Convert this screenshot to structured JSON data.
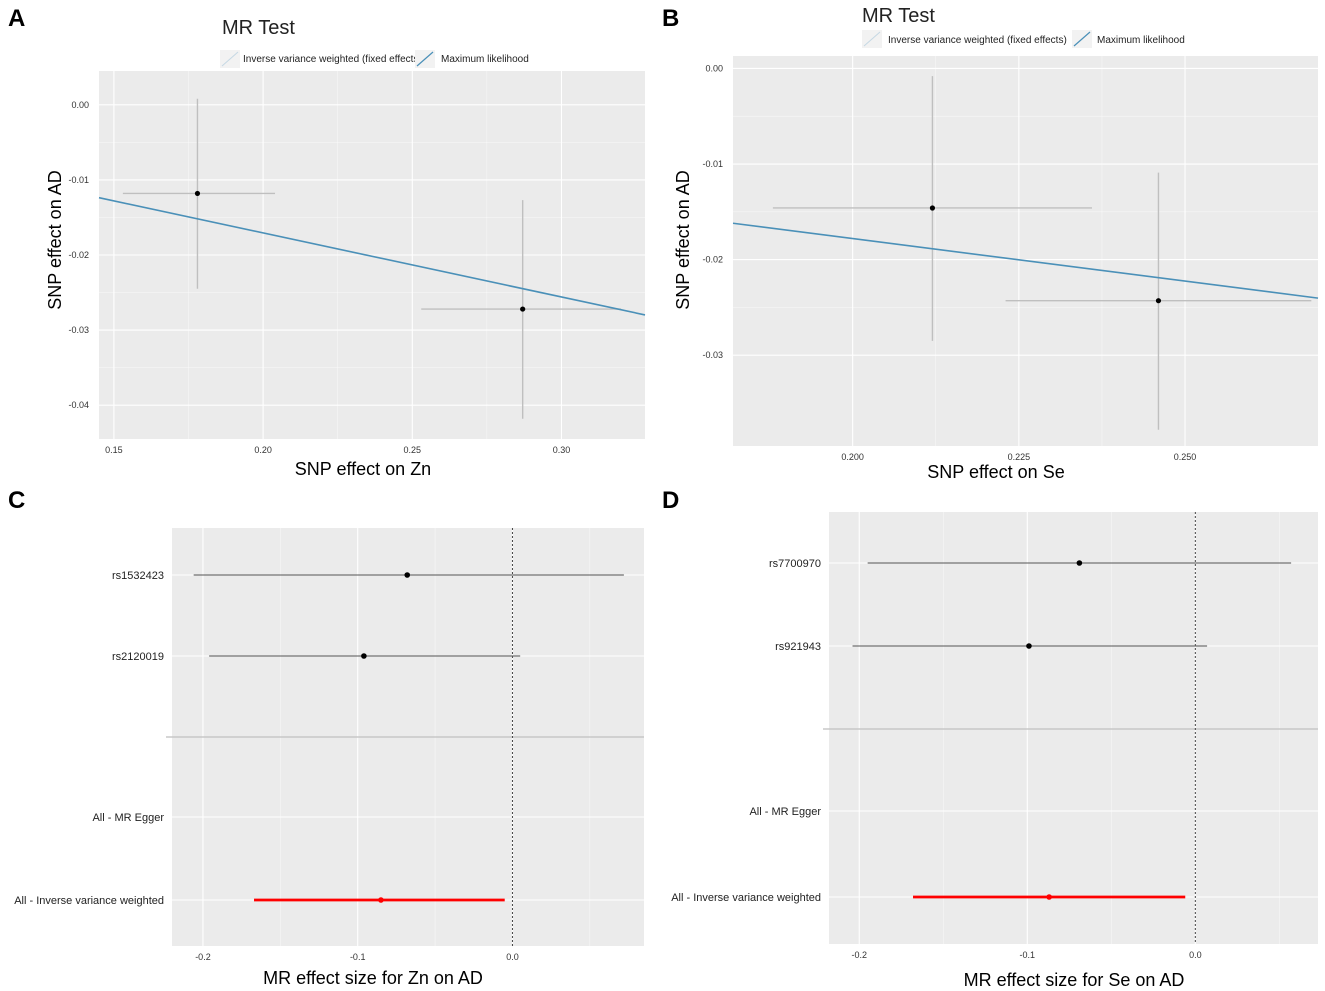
{
  "colors": {
    "panel_bg": "#ebebeb",
    "grid": "#ffffff",
    "errorbar": "#bfbfbf",
    "fit_line": "#4a90b8",
    "point": "#000000",
    "ivw": "#ff0000",
    "legend_key_bg": "#f2f2f2"
  },
  "chart_data": [
    {
      "panel": "A",
      "type": "scatter",
      "title": "MR Test",
      "legend": [
        "Inverse variance weighted (fixed effects)",
        "Maximum likelihood"
      ],
      "xlabel": "SNP effect on Zn",
      "ylabel": "SNP effect on AD",
      "xlim": [
        0.145,
        0.328
      ],
      "ylim": [
        -0.0445,
        0.0045
      ],
      "xticks": [
        0.15,
        0.2,
        0.25,
        0.3
      ],
      "xtick_labels": [
        "0.15",
        "0.20",
        "0.25",
        "0.30"
      ],
      "yticks": [
        0.0,
        -0.01,
        -0.02,
        -0.03,
        -0.04
      ],
      "ytick_labels": [
        "0.00",
        "-0.01",
        "-0.02",
        "-0.03",
        "-0.04"
      ],
      "points": [
        {
          "x": 0.178,
          "y": -0.0118,
          "xlo": 0.153,
          "xhi": 0.204,
          "ylo": -0.0245,
          "yhi": 0.0008
        },
        {
          "x": 0.287,
          "y": -0.0272,
          "xlo": 0.253,
          "xhi": 0.32,
          "ylo": -0.0418,
          "yhi": -0.0127
        }
      ],
      "line": {
        "slope": -0.0853,
        "x_start": 0.145,
        "x_end": 0.328
      }
    },
    {
      "panel": "B",
      "type": "scatter",
      "title": "MR Test",
      "legend": [
        "Inverse variance weighted (fixed effects)",
        "Maximum likelihood"
      ],
      "xlabel": "SNP effect on Se",
      "ylabel": "SNP effect on AD",
      "xlim": [
        0.182,
        0.27
      ],
      "ylim": [
        -0.0395,
        0.0013
      ],
      "xticks": [
        0.2,
        0.225,
        0.25
      ],
      "xtick_labels": [
        "0.200",
        "0.225",
        "0.250"
      ],
      "yticks": [
        0.0,
        -0.01,
        -0.02,
        -0.03
      ],
      "ytick_labels": [
        "0.00",
        "-0.01",
        "-0.02",
        "-0.03"
      ],
      "points": [
        {
          "x": 0.212,
          "y": -0.0146,
          "xlo": 0.188,
          "xhi": 0.236,
          "ylo": -0.0285,
          "yhi": -0.0008
        },
        {
          "x": 0.246,
          "y": -0.0243,
          "xlo": 0.223,
          "xhi": 0.269,
          "ylo": -0.0378,
          "yhi": -0.0109
        }
      ],
      "line": {
        "slope": -0.089,
        "x_start": 0.182,
        "x_end": 0.27
      }
    },
    {
      "panel": "C",
      "type": "forest",
      "xlabel": "MR effect size for Zn on AD",
      "xlim": [
        -0.22,
        0.085
      ],
      "xticks": [
        -0.2,
        -0.1,
        0.0
      ],
      "xtick_labels": [
        "-0.2",
        "-0.1",
        "0.0"
      ],
      "rows": [
        {
          "label": "rs1532423",
          "est": -0.068,
          "lo": -0.206,
          "hi": 0.072,
          "kind": "snp"
        },
        {
          "label": "rs2120019",
          "est": -0.096,
          "lo": -0.196,
          "hi": 0.005,
          "kind": "snp"
        },
        {
          "label": "All - MR Egger",
          "est": null,
          "lo": null,
          "hi": null,
          "kind": "summary"
        },
        {
          "label": "All - Inverse variance weighted",
          "est": -0.085,
          "lo": -0.167,
          "hi": -0.005,
          "kind": "ivw"
        }
      ]
    },
    {
      "panel": "D",
      "type": "forest",
      "xlabel": "MR effect size for Se on AD",
      "xlim": [
        -0.218,
        0.073
      ],
      "xticks": [
        -0.2,
        -0.1,
        0.0
      ],
      "xtick_labels": [
        "-0.2",
        "-0.1",
        "0.0"
      ],
      "rows": [
        {
          "label": "rs7700970",
          "est": -0.069,
          "lo": -0.195,
          "hi": 0.057,
          "kind": "snp"
        },
        {
          "label": "rs921943",
          "est": -0.099,
          "lo": -0.204,
          "hi": 0.007,
          "kind": "snp"
        },
        {
          "label": "All - MR Egger",
          "est": null,
          "lo": null,
          "hi": null,
          "kind": "summary"
        },
        {
          "label": "All - Inverse variance weighted",
          "est": -0.087,
          "lo": -0.168,
          "hi": -0.006,
          "kind": "ivw"
        }
      ]
    }
  ]
}
